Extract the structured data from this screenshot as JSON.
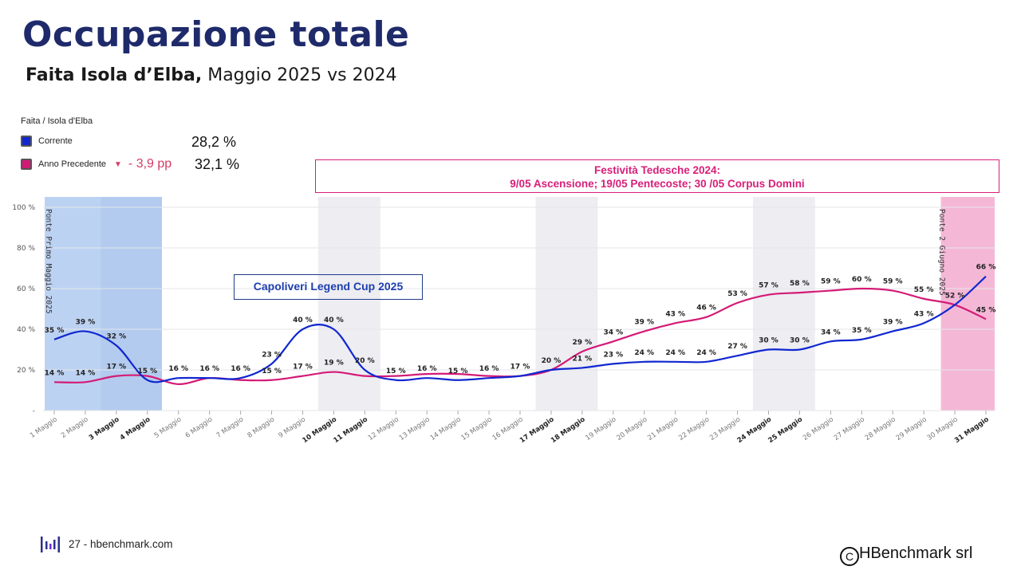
{
  "header": {
    "title": "Occupazione totale",
    "subtitle_bold": "Faita Isola d’Elba,",
    "subtitle_rest": " Maggio 2025 vs 2024"
  },
  "legend": {
    "source": "Faita / Isola d'Elba",
    "current_label": "Corrente",
    "current_value": "28,2 %",
    "previous_label": "Anno Precedente",
    "delta": "- 3,9 pp",
    "previous_value": "32,1 %"
  },
  "annotations": {
    "festivita_line1": "Festività Tedesche 2024:",
    "festivita_line2": "9/05 Ascensione; 19/05 Pentecoste; 30 /05 Corpus Domini",
    "capoliveri": "Capoliveri Legend Cup 2025",
    "ponte_maggio": "Ponte Primo Maggio 2025",
    "ponte_giugno": "Ponte 2 Giugno 2025"
  },
  "colors": {
    "current": "#1027d0",
    "previous": "#d41a76",
    "title": "#1f2a6b",
    "highlight_blue": "#bcd2f2",
    "highlight_pink": "#f4b8d6",
    "weekend_gray": "#ededf2"
  },
  "footer": {
    "page_text": "27 - hbenchmark.com",
    "copyright": "HBenchmark srl",
    "logo_icon": "hbenchmark-logo-icon",
    "copyright_icon": "copyright-icon"
  },
  "chart_data": {
    "type": "line",
    "categories": [
      "1 Maggio",
      "2 Maggio",
      "3 Maggio",
      "4 Maggio",
      "5 Maggio",
      "6 Maggio",
      "7 Maggio",
      "8 Maggio",
      "9 Maggio",
      "10 Maggio",
      "11 Maggio",
      "12 Maggio",
      "13 Maggio",
      "14 Maggio",
      "15 Maggio",
      "16 Maggio",
      "17 Maggio",
      "18 Maggio",
      "19 Maggio",
      "20 Maggio",
      "21 Maggio",
      "22 Maggio",
      "23 Maggio",
      "24 Maggio",
      "25 Maggio",
      "26 Maggio",
      "27 Maggio",
      "28 Maggio",
      "29 Maggio",
      "30 Maggio",
      "31 Maggio"
    ],
    "bold_categories": [
      "3 Maggio",
      "4 Maggio",
      "10 Maggio",
      "11 Maggio",
      "17 Maggio",
      "18 Maggio",
      "24 Maggio",
      "25 Maggio",
      "31 Maggio"
    ],
    "y_ticks": [
      "-",
      "20 %",
      "40 %",
      "60 %",
      "80 %",
      "100 %"
    ],
    "ylim": [
      0,
      100
    ],
    "series": [
      {
        "name": "Corrente",
        "values": [
          35,
          39,
          32,
          15,
          16,
          16,
          16,
          23,
          40,
          40,
          20,
          15,
          16,
          15,
          16,
          17,
          20,
          21,
          23,
          24,
          24,
          24,
          27,
          30,
          30,
          34,
          35,
          39,
          43,
          52,
          66
        ]
      },
      {
        "name": "Anno Precedente",
        "values": [
          14,
          14,
          17,
          17,
          13,
          16,
          15,
          15,
          17,
          19,
          17,
          17,
          18,
          18,
          17,
          17,
          20,
          29,
          34,
          39,
          43,
          46,
          53,
          57,
          58,
          59,
          60,
          59,
          55,
          52,
          45
        ]
      }
    ],
    "labels_current": [
      "35 %",
      "39 %",
      "32 %",
      "15 %",
      "16 %",
      "16 %",
      "16 %",
      "23 %",
      "40 %",
      "40 %",
      "20 %",
      "15 %",
      "16 %",
      "15 %",
      "16 %",
      "17 %",
      "20 %",
      "21 %",
      "23 %",
      "24 %",
      "24 %",
      "24 %",
      "27 %",
      "30 %",
      "30 %",
      "34 %",
      "35 %",
      "39 %",
      "43 %",
      "52 %",
      "66 %"
    ],
    "labels_previous": [
      "14 %",
      "14 %",
      "17 %",
      "",
      "",
      "",
      "",
      "15 %",
      "17 %",
      "19 %",
      "",
      "",
      "",
      "",
      "",
      "",
      "",
      "29 %",
      "34 %",
      "39 %",
      "43 %",
      "46 %",
      "53 %",
      "57 %",
      "58 %",
      "59 %",
      "60 %",
      "59 %",
      "55 %",
      "",
      "45 %"
    ],
    "shaded_periods": [
      {
        "from": "1 Maggio",
        "to": "4 Maggio",
        "kind": "highlight_blue"
      },
      {
        "from": "10 Maggio",
        "to": "11 Maggio",
        "kind": "weekend_gray"
      },
      {
        "from": "17 Maggio",
        "to": "18 Maggio",
        "kind": "weekend_gray"
      },
      {
        "from": "24 Maggio",
        "to": "25 Maggio",
        "kind": "weekend_gray"
      },
      {
        "from": "30 Maggio",
        "to": "31 Maggio",
        "kind": "highlight_pink"
      }
    ]
  }
}
